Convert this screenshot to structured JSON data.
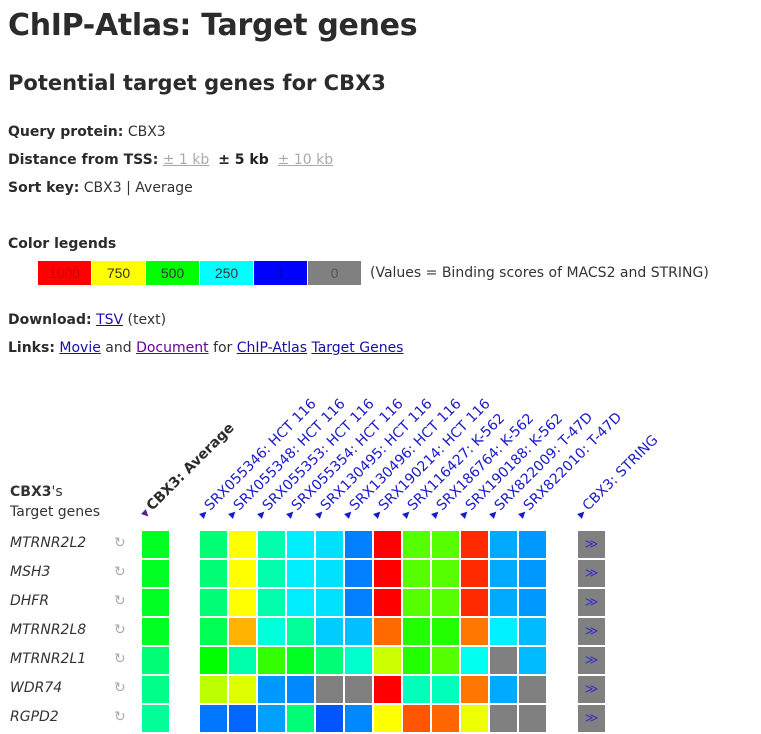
{
  "title": "ChIP-Atlas: Target genes",
  "subtitle": "Potential target genes for CBX3",
  "query": {
    "label": "Query protein:",
    "value": "CBX3"
  },
  "distance": {
    "label": "Distance from TSS:",
    "options": [
      "± 1 kb",
      "± 5 kb",
      "± 10 kb"
    ],
    "selected": "± 5 kb"
  },
  "sort": {
    "label": "Sort key:",
    "value": "CBX3 | Average"
  },
  "legend": {
    "title": "Color legends",
    "items": [
      {
        "label": "1000",
        "color": "#ff0000",
        "text": "#cc0000"
      },
      {
        "label": "750",
        "color": "#ffff00",
        "text": "#333333"
      },
      {
        "label": "500",
        "color": "#00ff00",
        "text": "#333333"
      },
      {
        "label": "250",
        "color": "#00ffff",
        "text": "#333333"
      },
      {
        "label": "1",
        "color": "#0000ff",
        "text": "#0000aa"
      },
      {
        "label": "0",
        "color": "#808080",
        "text": "#555555"
      }
    ],
    "note": "(Values = Binding scores of MACS2 and STRING)"
  },
  "download": {
    "label": "Download:",
    "link": "TSV",
    "suffix": "(text)"
  },
  "links": {
    "label": "Links:",
    "movie": "Movie",
    "and": "and",
    "document": "Document",
    "for": "for",
    "chip_atlas": "ChIP-Atlas",
    "target_genes": "Target Genes"
  },
  "table": {
    "row_header_bold": "CBX3",
    "row_header_rest": "'s",
    "row_header_line2": "Target genes",
    "avg_column": "CBX3: Average",
    "columns": [
      "SRX055346: HCT 116",
      "SRX055348: HCT 116",
      "SRX055353: HCT 116",
      "SRX055354: HCT 116",
      "SRX130495: HCT 116",
      "SRX130496: HCT 116",
      "SRX190214: HCT 116",
      "SRX116427: K-562",
      "SRX186764: K-562",
      "SRX190188: K-562",
      "SRX822009: T-47D",
      "SRX822010: T-47D"
    ],
    "string_column": "CBX3: STRING",
    "string_button": "≫",
    "reload_icon": "↻",
    "rows": [
      {
        "gene": "MTRNR2L2",
        "avg": "#00ff22",
        "cells": [
          "#00ff77",
          "#ffff00",
          "#00ffaa",
          "#00eeff",
          "#00e0ff",
          "#0080ff",
          "#ff0000",
          "#55ff00",
          "#55ff00",
          "#ff2a00",
          "#00aaff",
          "#0099ff"
        ]
      },
      {
        "gene": "MSH3",
        "avg": "#00ff22",
        "cells": [
          "#00ff77",
          "#ffff00",
          "#00ffaa",
          "#00eeff",
          "#00e0ff",
          "#0080ff",
          "#ff0000",
          "#55ff00",
          "#55ff00",
          "#ff2a00",
          "#00aaff",
          "#0099ff"
        ]
      },
      {
        "gene": "DHFR",
        "avg": "#00ff22",
        "cells": [
          "#00ff77",
          "#ffff00",
          "#00ffaa",
          "#00eeff",
          "#00e0ff",
          "#0080ff",
          "#ff0000",
          "#55ff00",
          "#55ff00",
          "#ff2a00",
          "#00aaff",
          "#0099ff"
        ]
      },
      {
        "gene": "MTRNR2L8",
        "avg": "#00ff22",
        "cells": [
          "#00ff55",
          "#ffb300",
          "#00ffdd",
          "#00ff99",
          "#00ccff",
          "#00c0ff",
          "#ff6a00",
          "#22ff00",
          "#22ff00",
          "#ff7700",
          "#00f0ff",
          "#00bbff"
        ]
      },
      {
        "gene": "MTRNR2L1",
        "avg": "#00ff77",
        "cells": [
          "#00ff00",
          "#00ffaa",
          "#33ff00",
          "#00ff22",
          "#00ff77",
          "#00ffcc",
          "#ccff00",
          "#22ff00",
          "#55ff00",
          "#00ffee",
          "#808080",
          "#00bbff"
        ]
      },
      {
        "gene": "WDR74",
        "avg": "#00ff88",
        "cells": [
          "#bbff00",
          "#ddff00",
          "#0099ff",
          "#0088ff",
          "#808080",
          "#808080",
          "#ff0000",
          "#00ffbb",
          "#00ffbb",
          "#ff7700",
          "#00aaff",
          "#808080"
        ]
      },
      {
        "gene": "RGPD2",
        "avg": "#00ff99",
        "cells": [
          "#0077ff",
          "#0066ff",
          "#00a0ff",
          "#00ff77",
          "#0055ff",
          "#0088ff",
          "#ffff00",
          "#ff5500",
          "#ff6600",
          "#eeff00",
          "#808080",
          "#808080"
        ]
      }
    ]
  }
}
